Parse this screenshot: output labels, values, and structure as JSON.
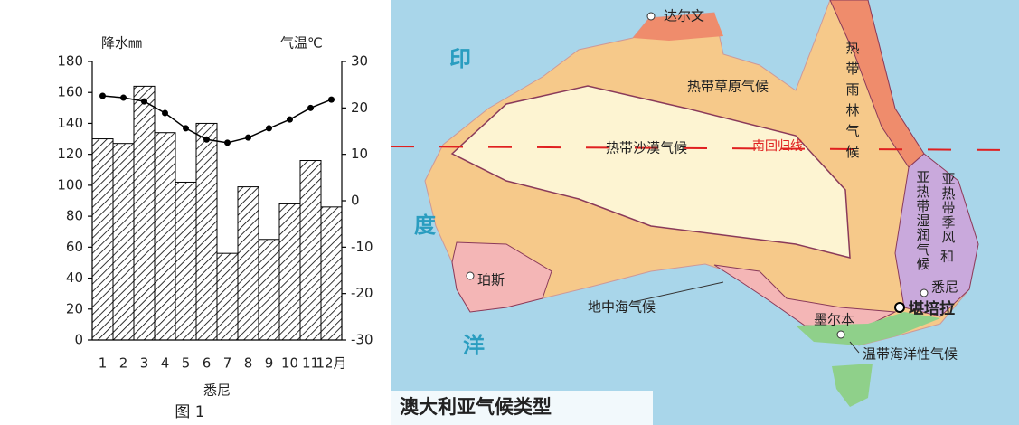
{
  "chart_data": {
    "type": "bar-line",
    "y_label": "降水㎜",
    "y2_label": "气温℃",
    "x_label": "悉尼",
    "caption": "图 1",
    "categories": [
      "1",
      "2",
      "3",
      "4",
      "5",
      "6",
      "7",
      "8",
      "9",
      "10",
      "11",
      "12月"
    ],
    "series": [
      {
        "name": "降水",
        "type": "bar",
        "values": [
          130,
          127,
          164,
          134,
          102,
          140,
          56,
          99,
          65,
          88,
          116,
          86
        ]
      },
      {
        "name": "气温",
        "type": "line",
        "axis": "y2",
        "values": [
          22.6,
          22.2,
          21.4,
          18.9,
          15.6,
          13.2,
          12.5,
          13.6,
          15.6,
          17.5,
          20,
          21.8
        ]
      }
    ],
    "ylim": [
      0,
      180
    ],
    "yticks": [
      0,
      20,
      40,
      60,
      80,
      100,
      120,
      140,
      160,
      180
    ],
    "y2lim": [
      -30,
      30
    ],
    "y2ticks": [
      -30,
      -20,
      -10,
      0,
      10,
      20,
      30
    ]
  },
  "map": {
    "title": "澳大利亚气候类型",
    "labels": {
      "darwin": "达尔文",
      "savanna": "热带草原气候",
      "desert": "热带沙漠气候",
      "tropic": "南回归线",
      "rainforest": "热带雨林气候",
      "subtropical_a": "亚热带季风",
      "subtropical_b": "亚热带湿润气候",
      "subtropical_c": "和",
      "perth": "珀斯",
      "mediterranean": "地中海气候",
      "melbourne": "墨尔本",
      "canberra": "堪培拉",
      "sydney": "悉尼",
      "oceanic": "温带海洋性气候",
      "ocean_1": "印",
      "ocean_2": "度",
      "ocean_3": "洋"
    }
  }
}
